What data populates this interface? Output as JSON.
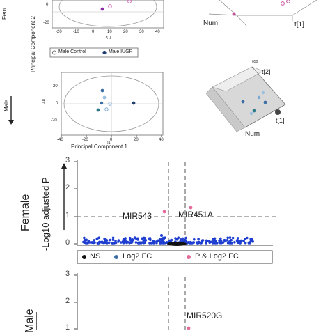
{
  "labels": {
    "fem_truncated": "Fem",
    "pc2": "Principal Component 2",
    "pc1": "Principal Component 1",
    "male_small": "Male",
    "t1_top": "t[1]",
    "t1_mid": "t[1]",
    "t2_mid": "t[2]",
    "num_top": "Num",
    "num_mid": "Num",
    "t_tick_top": "t[1]",
    "t_tick_bot": "t[1]",
    "u_tick": "u[1]",
    "legend_top": [
      "Male Control",
      "Male IUGR"
    ],
    "female_big": "Female",
    "neglog": "-Log10 adjusted P",
    "male_big": "Male",
    "legend_bottom": [
      "NS",
      "Log2 FC",
      "P & Log2 FC"
    ],
    "ticks_3d": "050"
  },
  "chart_data": [
    {
      "type": "scatter",
      "panel": "Female PCA (partial)",
      "xticks": [
        "-20",
        "-10",
        "0",
        "10",
        "20",
        "30",
        "40"
      ],
      "yticks": [
        "0",
        "-20"
      ],
      "points": [
        {
          "x": -10,
          "y": 3,
          "group": "Male IUGR"
        },
        {
          "x": 10,
          "y": 10,
          "group": "Male Control"
        }
      ],
      "xlabel": "t[1]",
      "ylabel": "Principal Component 2"
    },
    {
      "type": "scatter",
      "panel": "Male PCA",
      "xticks": [
        "-40",
        "-20",
        "0",
        "20",
        "40"
      ],
      "yticks": [
        "20",
        "0",
        "-20"
      ],
      "points": [
        {
          "x": -18,
          "y": 10,
          "group": "Male IUGR"
        },
        {
          "x": -14,
          "y": 2,
          "group": "Male Control"
        },
        {
          "x": -8,
          "y": -2,
          "group": "Male Control"
        },
        {
          "x": -22,
          "y": -5,
          "group": "Male IUGR"
        },
        {
          "x": 42,
          "y": -5,
          "group": "Male IUGR"
        },
        {
          "x": -12,
          "y": -8,
          "group": "Male Control"
        }
      ],
      "xlabel": "Principal Component 1",
      "ylabel": "u[1]"
    },
    {
      "type": "scatter",
      "panel": "Female volcano",
      "yticks": [
        "0",
        "1",
        "2",
        "3"
      ],
      "ylim": [
        0,
        3
      ],
      "threshold_p": 1,
      "annotations": [
        "MIR543",
        "MIR451A"
      ],
      "legend": [
        "NS",
        "Log2 FC",
        "P & Log2 FC"
      ],
      "ylabel": "-Log10 adjusted P"
    },
    {
      "type": "scatter",
      "panel": "Male volcano (partial)",
      "yticks": [
        "1",
        "2",
        "3"
      ],
      "annotations": [
        "MIR520G"
      ]
    }
  ],
  "colors": {
    "blue": "#1f3fd0",
    "pink": "#e46a9a",
    "black": "#111111",
    "steel": "#3a6ea5"
  }
}
